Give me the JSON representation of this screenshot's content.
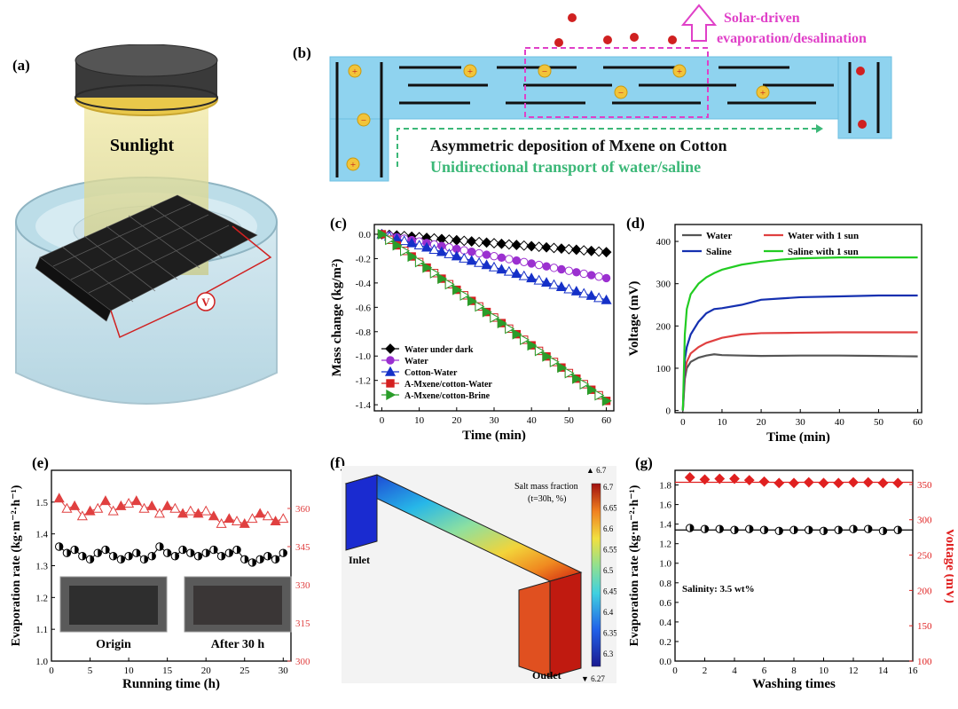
{
  "panel_labels": {
    "a": "(a)",
    "b": "(b)",
    "c": "(c)",
    "d": "(d)",
    "e": "(e)",
    "f": "(f)",
    "g": "(g)"
  },
  "panel_a": {
    "sunlight": "Sunlight",
    "voltmeter": "V"
  },
  "panel_b": {
    "solar_line1": "Solar-driven",
    "solar_line2": "evaporation/desalination",
    "caption1": "Asymmetric deposition of Mxene on Cotton",
    "caption2": "Unidirectional transport of water/saline",
    "colors": {
      "channel": "#8fd3ef",
      "magenta": "#e040c8",
      "green": "#3cb878"
    }
  },
  "panel_f": {
    "legend_title": "Salt mass fraction",
    "legend_sub": "(t=30h, %)",
    "max_label": "▲ 6.7",
    "min_label": "▼ 6.27",
    "ticks": [
      "6.7",
      "6.65",
      "6.6",
      "6.55",
      "6.5",
      "6.45",
      "6.4",
      "6.35",
      "6.3"
    ],
    "inlet": "Inlet",
    "outlet": "Outlet"
  },
  "chart_data": [
    {
      "id": "c",
      "type": "line",
      "xlabel": "Time (min)",
      "ylabel": "Mass change (kg/m²)",
      "xlim": [
        -2,
        62
      ],
      "ylim": [
        -1.45,
        0.08
      ],
      "xticks": [
        0,
        10,
        20,
        30,
        40,
        50,
        60
      ],
      "yticks": [
        0.0,
        -0.2,
        -0.4,
        -0.6,
        -0.8,
        -1.0,
        -1.2,
        -1.4
      ],
      "ytick_labels": [
        "0.0",
        "-0.2",
        "-0.4",
        "-0.6",
        "-0.8",
        "-1.0",
        "-1.2",
        "-1.4"
      ],
      "legend_position": "bottom-left",
      "series": [
        {
          "name": "Water under dark",
          "color": "#000000",
          "marker": "diamond",
          "slope": -0.00245
        },
        {
          "name": "Water",
          "color": "#9b30d0",
          "marker": "circle",
          "slope": -0.006
        },
        {
          "name": "Cotton-Water",
          "color": "#1530c8",
          "marker": "triangle-up",
          "slope": -0.009
        },
        {
          "name": "A-Mxene/cotton-Water",
          "color": "#d42020",
          "marker": "square",
          "slope": -0.0228
        },
        {
          "name": "A-Mxene/cotton-Brine",
          "color": "#2a9d2a",
          "marker": "triangle-right",
          "slope": -0.0228
        }
      ]
    },
    {
      "id": "d",
      "type": "line",
      "xlabel": "Time (min)",
      "ylabel": "Voltage (mV)",
      "xlim": [
        -2,
        61
      ],
      "ylim": [
        -5,
        440
      ],
      "xticks": [
        0,
        10,
        20,
        30,
        40,
        50,
        60
      ],
      "yticks": [
        0,
        100,
        200,
        300,
        400
      ],
      "legend_position": "top",
      "series": [
        {
          "name": "Water",
          "color": "#555555",
          "points": [
            [
              0,
              0
            ],
            [
              0.5,
              75
            ],
            [
              1,
              100
            ],
            [
              2,
              115
            ],
            [
              4,
              125
            ],
            [
              6,
              130
            ],
            [
              8,
              133
            ],
            [
              10,
              131
            ],
            [
              15,
              130
            ],
            [
              20,
              129
            ],
            [
              30,
              130
            ],
            [
              40,
              130
            ],
            [
              50,
              129
            ],
            [
              60,
              128
            ]
          ]
        },
        {
          "name": "Water with 1 sun",
          "color": "#e04040",
          "points": [
            [
              0,
              0
            ],
            [
              0.5,
              90
            ],
            [
              1,
              115
            ],
            [
              2,
              135
            ],
            [
              4,
              150
            ],
            [
              6,
              160
            ],
            [
              10,
              172
            ],
            [
              15,
              180
            ],
            [
              20,
              183
            ],
            [
              30,
              184
            ],
            [
              40,
              185
            ],
            [
              50,
              185
            ],
            [
              60,
              185
            ]
          ]
        },
        {
          "name": "Saline",
          "color": "#1530b0",
          "points": [
            [
              0,
              0
            ],
            [
              0.5,
              120
            ],
            [
              1,
              150
            ],
            [
              2,
              180
            ],
            [
              4,
              210
            ],
            [
              6,
              230
            ],
            [
              8,
              240
            ],
            [
              10,
              242
            ],
            [
              15,
              250
            ],
            [
              20,
              262
            ],
            [
              25,
              265
            ],
            [
              30,
              268
            ],
            [
              40,
              270
            ],
            [
              50,
              272
            ],
            [
              60,
              272
            ]
          ]
        },
        {
          "name": "Saline with 1 sun",
          "color": "#22cc22",
          "points": [
            [
              0,
              0
            ],
            [
              0.5,
              180
            ],
            [
              1,
              240
            ],
            [
              2,
              275
            ],
            [
              4,
              300
            ],
            [
              6,
              315
            ],
            [
              8,
              325
            ],
            [
              10,
              333
            ],
            [
              15,
              345
            ],
            [
              20,
              352
            ],
            [
              25,
              357
            ],
            [
              30,
              360
            ],
            [
              40,
              362
            ],
            [
              50,
              362
            ],
            [
              60,
              362
            ]
          ]
        }
      ]
    },
    {
      "id": "e",
      "type": "line",
      "xlabel": "Running time (h)",
      "ylabel": "Evaporation rate (kg·m⁻²·h⁻¹)",
      "y2label": "Voltage (mV)",
      "xlim": [
        0,
        31
      ],
      "ylim": [
        1.0,
        1.6
      ],
      "y2lim": [
        300,
        375
      ],
      "xticks": [
        0,
        5,
        10,
        15,
        20,
        25,
        30
      ],
      "xtick_labels": [
        "0",
        "5",
        "10",
        "15",
        "20",
        "25",
        "30"
      ],
      "yticks": [
        1.0,
        1.1,
        1.2,
        1.3,
        1.4,
        1.5
      ],
      "ytick_labels": [
        "1.0",
        "1.1",
        "1.2",
        "1.3",
        "1.4",
        "1.5"
      ],
      "y2ticks": [
        300,
        315,
        330,
        345,
        360
      ],
      "photo_labels": [
        "Origin",
        "After 30 h"
      ],
      "series": [
        {
          "name": "Evaporation rate",
          "axis": "left",
          "color": "#000000",
          "x": [
            1,
            2,
            3,
            4,
            5,
            6,
            7,
            8,
            9,
            10,
            11,
            12,
            13,
            14,
            15,
            16,
            17,
            18,
            19,
            20,
            21,
            22,
            23,
            24,
            25,
            26,
            27,
            28,
            29,
            30
          ],
          "y": [
            1.36,
            1.34,
            1.35,
            1.33,
            1.32,
            1.34,
            1.35,
            1.33,
            1.32,
            1.33,
            1.34,
            1.32,
            1.33,
            1.36,
            1.34,
            1.33,
            1.35,
            1.34,
            1.33,
            1.34,
            1.35,
            1.33,
            1.34,
            1.35,
            1.32,
            1.31,
            1.32,
            1.33,
            1.32,
            1.34
          ]
        },
        {
          "name": "Voltage",
          "axis": "right",
          "color": "#e04040",
          "x": [
            1,
            2,
            3,
            4,
            5,
            6,
            7,
            8,
            9,
            10,
            11,
            12,
            13,
            14,
            15,
            16,
            17,
            18,
            19,
            20,
            21,
            22,
            23,
            24,
            25,
            26,
            27,
            28,
            29,
            30
          ],
          "y": [
            364,
            360,
            361,
            357,
            359,
            360,
            363,
            359,
            361,
            362,
            363,
            360,
            361,
            358,
            361,
            360,
            358,
            359,
            358,
            359,
            357,
            354,
            356,
            355,
            354,
            356,
            358,
            357,
            355,
            356
          ]
        }
      ]
    },
    {
      "id": "g",
      "type": "scatter",
      "xlabel": "Washing times",
      "ylabel": "Evaporation rate (kg·m⁻²·h⁻¹)",
      "y2label": "Voltage (mV)",
      "annotation": "Salinity: 3.5 wt%",
      "xlim": [
        0,
        16
      ],
      "ylim": [
        0.0,
        1.95
      ],
      "y2lim": [
        100,
        370
      ],
      "xticks": [
        0,
        2,
        4,
        6,
        8,
        10,
        12,
        14,
        16
      ],
      "yticks": [
        0.0,
        0.2,
        0.4,
        0.6,
        0.8,
        1.0,
        1.2,
        1.4,
        1.6,
        1.8
      ],
      "ytick_labels": [
        "0.0",
        "0.2",
        "0.4",
        "0.6",
        "0.8",
        "1.0",
        "1.2",
        "1.4",
        "1.6",
        "1.8"
      ],
      "y2ticks": [
        100,
        150,
        200,
        250,
        300,
        350
      ],
      "series": [
        {
          "name": "Evaporation rate",
          "axis": "left",
          "color": "#000000",
          "x": [
            1,
            2,
            3,
            4,
            5,
            6,
            7,
            8,
            9,
            10,
            11,
            12,
            13,
            14,
            15
          ],
          "y": [
            1.36,
            1.35,
            1.35,
            1.34,
            1.35,
            1.34,
            1.33,
            1.34,
            1.34,
            1.33,
            1.34,
            1.35,
            1.35,
            1.33,
            1.34
          ]
        },
        {
          "name": "Voltage",
          "axis": "right",
          "color": "#e02020",
          "x": [
            1,
            2,
            3,
            4,
            5,
            6,
            7,
            8,
            9,
            10,
            11,
            12,
            13,
            14,
            15
          ],
          "y": [
            360,
            357,
            358,
            358,
            356,
            354,
            352,
            352,
            353,
            352,
            352,
            353,
            353,
            352,
            352
          ]
        }
      ]
    }
  ]
}
